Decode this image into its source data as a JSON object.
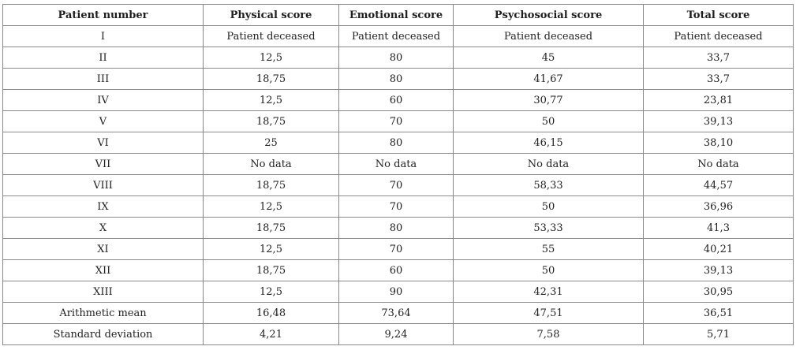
{
  "table": {
    "headers": [
      "Patient number",
      "Physical score",
      "Emotional score",
      "Psychosocial score",
      "Total score"
    ],
    "rows": [
      [
        "I",
        "Patient deceased",
        "Patient deceased",
        "Patient deceased",
        "Patient deceased"
      ],
      [
        "II",
        "12,5",
        "80",
        "45",
        "33,7"
      ],
      [
        "III",
        "18,75",
        "80",
        "41,67",
        "33,7"
      ],
      [
        "IV",
        "12,5",
        "60",
        "30,77",
        "23,81"
      ],
      [
        "V",
        "18,75",
        "70",
        "50",
        "39,13"
      ],
      [
        "VI",
        "25",
        "80",
        "46,15",
        "38,10"
      ],
      [
        "VII",
        "No data",
        "No data",
        "No data",
        "No data"
      ],
      [
        "VIII",
        "18,75",
        "70",
        "58,33",
        "44,57"
      ],
      [
        "IX",
        "12,5",
        "70",
        "50",
        "36,96"
      ],
      [
        "X",
        "18,75",
        "80",
        "53,33",
        "41,3"
      ],
      [
        "XI",
        "12,5",
        "70",
        "55",
        "40,21"
      ],
      [
        "XII",
        "18,75",
        "60",
        "50",
        "39,13"
      ],
      [
        "XIII",
        "12,5",
        "90",
        "42,31",
        "30,95"
      ],
      [
        "Arithmetic mean",
        "16,48",
        "73,64",
        "47,51",
        "36,51"
      ],
      [
        "Standard deviation",
        "4,21",
        "9,24",
        "7,58",
        "5,71"
      ]
    ]
  }
}
